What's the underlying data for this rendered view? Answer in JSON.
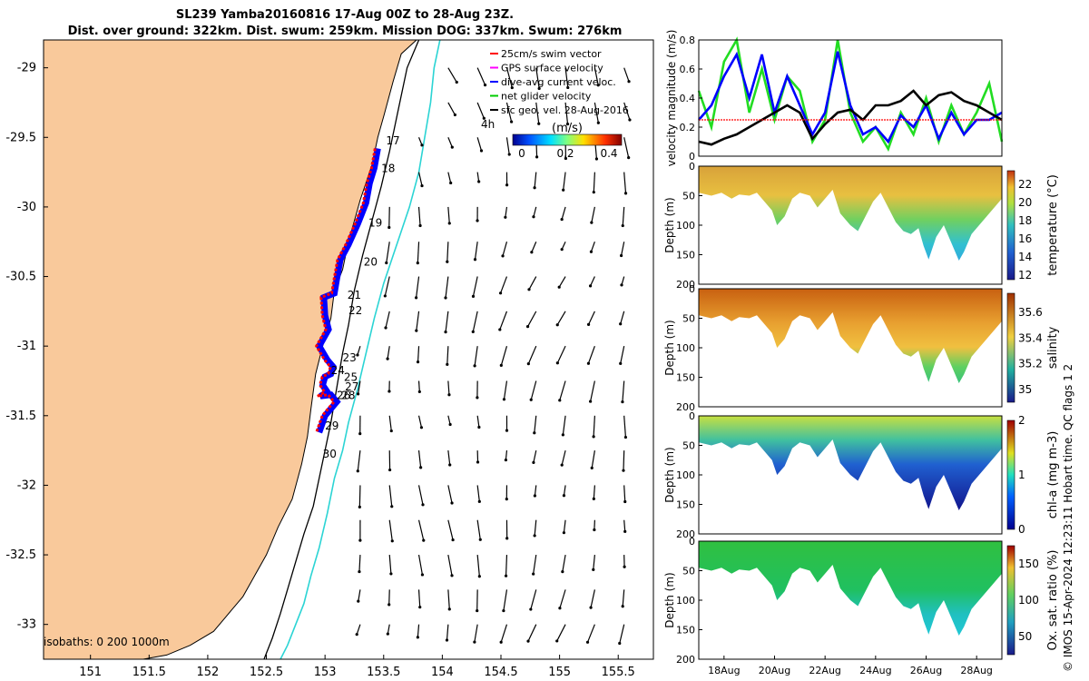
{
  "titles": {
    "line1": "SL239 Yamba20160816 17-Aug 00Z to 28-Aug 23Z.",
    "line2": "Dist. over ground: 322km. Dist. swum: 259km. Mission DOG: 337km. Swum: 276km"
  },
  "credit": "© IMOS 15-Apr-2024 12:23:11 Hobart time. QC flags 1  2",
  "colors": {
    "land": "#f9c99b",
    "isobath_0_200": "#000000",
    "isobath_1000": "#2bd4d4",
    "track_swim": "#ff0000",
    "track_current": "#0000ff",
    "speed_green": "#22dd22",
    "speed_black": "#000000"
  },
  "chart_data": [
    {
      "id": "map",
      "type": "scatter",
      "xlabel": "",
      "ylabel": "",
      "xlim": [
        150.6,
        155.8
      ],
      "ylim": [
        -33.25,
        -28.8
      ],
      "xticks": [
        "151",
        "151.5",
        "152",
        "152.5",
        "153",
        "153.5",
        "154",
        "154.5",
        "155",
        "155.5"
      ],
      "yticks": [
        "-29",
        "-29.5",
        "-30",
        "-30.5",
        "-31",
        "-31.5",
        "-32",
        "-32.5",
        "-33"
      ],
      "legend": [
        {
          "label": "25cm/s swim vector",
          "color": "#ff0000"
        },
        {
          "label": "GPS surface velocity",
          "color": "#ff00ff"
        },
        {
          "label": "dive-avg current veloc.",
          "color": "#0000ff"
        },
        {
          "label": "net glider velocity",
          "color": "#00cc00"
        },
        {
          "label": "sfc geo. vel. 28-Aug-2016",
          "color": "#000000"
        }
      ],
      "colorbar": {
        "label": "(m/s)",
        "ticks": [
          "0",
          "0.2",
          "0.4"
        ],
        "range": [
          0,
          0.5
        ]
      },
      "age_label": "4h",
      "isobath_label": "isobaths: 0   200   1000m",
      "track": {
        "lon": [
          153.45,
          153.42,
          153.38,
          153.35,
          153.28,
          153.2,
          153.13,
          153.1,
          153.08,
          152.99,
          153.0,
          153.03,
          152.95,
          153.02,
          153.07,
          153.05,
          153.0,
          152.98,
          153.02,
          152.96,
          153.05,
          153.1,
          153.0,
          152.95
        ],
        "lat": [
          -29.58,
          -29.72,
          -29.83,
          -29.97,
          -30.12,
          -30.27,
          -30.38,
          -30.52,
          -30.62,
          -30.65,
          -30.78,
          -30.88,
          -31.0,
          -31.1,
          -31.15,
          -31.2,
          -31.22,
          -31.28,
          -31.33,
          -31.36,
          -31.35,
          -31.4,
          -31.5,
          -31.62
        ]
      },
      "day_labels": [
        {
          "day": "17",
          "lon": 153.52,
          "lat": -29.55
        },
        {
          "day": "18",
          "lon": 153.48,
          "lat": -29.75
        },
        {
          "day": "19",
          "lon": 153.37,
          "lat": -30.14
        },
        {
          "day": "20",
          "lon": 153.33,
          "lat": -30.42
        },
        {
          "day": "21",
          "lon": 153.19,
          "lat": -30.66
        },
        {
          "day": "22",
          "lon": 153.2,
          "lat": -30.77
        },
        {
          "day": "23",
          "lon": 153.15,
          "lat": -31.11
        },
        {
          "day": "24",
          "lon": 153.05,
          "lat": -31.2
        },
        {
          "day": "25",
          "lon": 153.16,
          "lat": -31.25
        },
        {
          "day": "26",
          "lon": 153.1,
          "lat": -31.38
        },
        {
          "day": "27",
          "lon": 153.17,
          "lat": -31.32
        },
        {
          "day": "28",
          "lon": 153.14,
          "lat": -31.38
        },
        {
          "day": "29",
          "lon": 153.0,
          "lat": -31.6
        },
        {
          "day": "30",
          "lon": 152.98,
          "lat": -31.8
        }
      ],
      "coast": {
        "lon": [
          153.78,
          153.65,
          153.58,
          153.5,
          153.45,
          153.4,
          153.3,
          153.2,
          153.15,
          153.08,
          153.05,
          152.98,
          152.92,
          152.88,
          152.85,
          152.8,
          152.72,
          152.6,
          152.5,
          152.4,
          152.3,
          152.15,
          152.05,
          151.85,
          151.65,
          151.45
        ],
        "lat": [
          -28.8,
          -28.9,
          -29.1,
          -29.35,
          -29.5,
          -29.7,
          -29.95,
          -30.25,
          -30.45,
          -30.6,
          -30.8,
          -31.0,
          -31.2,
          -31.45,
          -31.65,
          -31.85,
          -32.1,
          -32.3,
          -32.5,
          -32.65,
          -32.8,
          -32.95,
          -33.05,
          -33.15,
          -33.22,
          -33.25
        ]
      },
      "isobath_200": {
        "lon": [
          153.8,
          153.7,
          153.65,
          153.6,
          153.55,
          153.48,
          153.4,
          153.32,
          153.25,
          153.2,
          153.15,
          153.1,
          153.05,
          153.0,
          152.95,
          152.9,
          152.82,
          152.75,
          152.68,
          152.62,
          152.55,
          152.48
        ],
        "lat": [
          -28.8,
          -29.0,
          -29.2,
          -29.4,
          -29.6,
          -29.85,
          -30.1,
          -30.35,
          -30.6,
          -30.85,
          -31.05,
          -31.3,
          -31.55,
          -31.75,
          -31.95,
          -32.15,
          -32.35,
          -32.55,
          -32.75,
          -32.92,
          -33.1,
          -33.25
        ]
      },
      "isobath_1000": {
        "lon": [
          153.98,
          153.93,
          153.9,
          153.85,
          153.8,
          153.72,
          153.6,
          153.5,
          153.42,
          153.35,
          153.28,
          153.2,
          153.15,
          153.08,
          153.02,
          152.95,
          152.88,
          152.82,
          152.75,
          152.68,
          152.62
        ],
        "lat": [
          -28.8,
          -29.0,
          -29.25,
          -29.5,
          -29.75,
          -30.0,
          -30.3,
          -30.55,
          -30.8,
          -31.05,
          -31.3,
          -31.55,
          -31.75,
          -31.95,
          -32.2,
          -32.45,
          -32.65,
          -32.85,
          -33.0,
          -33.15,
          -33.25
        ]
      },
      "vector_grid": {
        "lon_start": 153.3,
        "lon_step": 0.25,
        "lat_start": -29.0,
        "lat_step": -0.25,
        "cols": 10,
        "rows": 18
      }
    },
    {
      "id": "speed",
      "type": "line",
      "ylabel": "velocity magnitude (m/s)",
      "ylim": [
        0,
        0.8
      ],
      "yticks": [
        "0",
        "0.2",
        "0.4",
        "0.6",
        "0.8"
      ],
      "x_days": [
        17,
        17.5,
        18,
        18.5,
        19,
        19.5,
        20,
        20.5,
        21,
        21.5,
        22,
        22.5,
        23,
        23.5,
        24,
        24.5,
        25,
        25.5,
        26,
        26.5,
        27,
        27.5,
        28,
        28.5,
        29
      ],
      "series": [
        {
          "name": "net glider velocity",
          "color": "#22dd22",
          "values": [
            0.45,
            0.2,
            0.65,
            0.8,
            0.3,
            0.6,
            0.25,
            0.55,
            0.45,
            0.1,
            0.25,
            0.8,
            0.3,
            0.1,
            0.2,
            0.05,
            0.3,
            0.15,
            0.4,
            0.1,
            0.35,
            0.15,
            0.3,
            0.5,
            0.1
          ]
        },
        {
          "name": "dive-avg current veloc.",
          "color": "#0000ff",
          "values": [
            0.25,
            0.35,
            0.55,
            0.7,
            0.4,
            0.7,
            0.3,
            0.55,
            0.35,
            0.15,
            0.3,
            0.72,
            0.35,
            0.15,
            0.2,
            0.1,
            0.28,
            0.2,
            0.35,
            0.12,
            0.3,
            0.15,
            0.25,
            0.25,
            0.3
          ]
        },
        {
          "name": "sfc geo. vel.",
          "color": "#000000",
          "values": [
            0.1,
            0.08,
            0.12,
            0.15,
            0.2,
            0.25,
            0.3,
            0.35,
            0.3,
            0.12,
            0.22,
            0.3,
            0.32,
            0.25,
            0.35,
            0.35,
            0.38,
            0.45,
            0.35,
            0.42,
            0.44,
            0.38,
            0.35,
            0.3,
            0.25
          ]
        },
        {
          "name": "25cm/s swim vector",
          "color": "#ff0000",
          "values": [
            0.25,
            0.25,
            0.25,
            0.25,
            0.25,
            0.25,
            0.25,
            0.25,
            0.25,
            0.25,
            0.25,
            0.25,
            0.25,
            0.25,
            0.25,
            0.25,
            0.25,
            0.25,
            0.25,
            0.25,
            0.25,
            0.25,
            0.25,
            0.25,
            0.25
          ]
        }
      ]
    },
    {
      "id": "temperature",
      "type": "heatmap",
      "ylabel": "Depth (m)",
      "ylim": [
        0,
        200
      ],
      "yticks": [
        "0",
        "50",
        "100",
        "150",
        "200"
      ],
      "colorbar_label": "temperature (°C)",
      "colorbar_ticks": [
        "12",
        "14",
        "16",
        "18",
        "20",
        "22"
      ]
    },
    {
      "id": "salinity",
      "type": "heatmap",
      "ylabel": "Depth (m)",
      "ylim": [
        0,
        200
      ],
      "yticks": [
        "0",
        "50",
        "100",
        "150",
        "200"
      ],
      "colorbar_label": "salinity",
      "colorbar_ticks": [
        "35",
        "35.2",
        "35.4",
        "35.6"
      ]
    },
    {
      "id": "chla",
      "type": "heatmap",
      "ylabel": "Depth (m)",
      "ylim": [
        0,
        200
      ],
      "yticks": [
        "0",
        "50",
        "100",
        "150",
        "200"
      ],
      "colorbar_label": "chl-a (mg m-3)",
      "colorbar_ticks": [
        "0",
        "1",
        "2"
      ]
    },
    {
      "id": "oxygen",
      "type": "heatmap",
      "ylabel": "Depth (m)",
      "ylim": [
        0,
        200
      ],
      "yticks": [
        "0",
        "50",
        "100",
        "150",
        "200"
      ],
      "colorbar_label": "Ox. sat. ratio (%)",
      "colorbar_ticks": [
        "50",
        "100",
        "150"
      ],
      "xticks": [
        "18Aug",
        "20Aug",
        "22Aug",
        "24Aug",
        "26Aug",
        "28Aug"
      ]
    }
  ],
  "dive_envelope": {
    "x_days": [
      17.0,
      17.5,
      17.9,
      18.3,
      18.6,
      19.0,
      19.3,
      19.6,
      19.9,
      20.1,
      20.4,
      20.7,
      21.0,
      21.4,
      21.7,
      22.0,
      22.3,
      22.6,
      23.0,
      23.3,
      23.6,
      23.9,
      24.2,
      24.5,
      24.8,
      25.1,
      25.4,
      25.7,
      25.9,
      26.1,
      26.4,
      26.7,
      27.0,
      27.3,
      27.5,
      27.8,
      28.1,
      28.4,
      28.7,
      29.0
    ],
    "depths": [
      45,
      50,
      45,
      55,
      48,
      50,
      45,
      60,
      75,
      100,
      85,
      55,
      45,
      50,
      70,
      55,
      40,
      80,
      100,
      110,
      85,
      60,
      45,
      70,
      95,
      110,
      115,
      105,
      135,
      158,
      120,
      100,
      130,
      160,
      145,
      115,
      100,
      85,
      70,
      55
    ]
  }
}
